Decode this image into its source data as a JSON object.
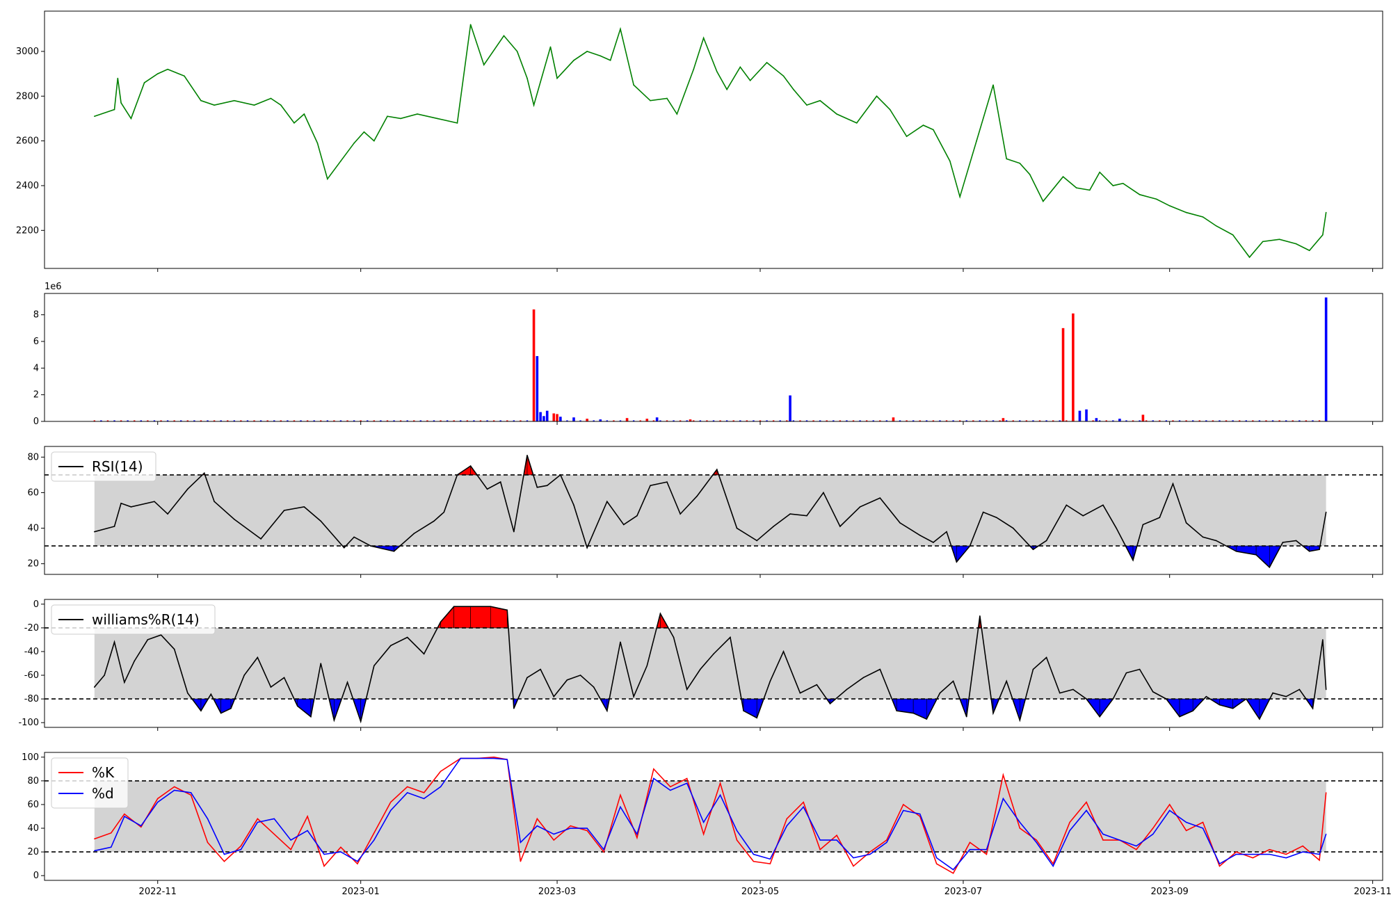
{
  "figure": {
    "x_ticks": [
      "2022-11",
      "2023-01",
      "2023-03",
      "2023-05",
      "2023-07",
      "2023-09",
      "2023-11"
    ],
    "colors": {
      "price": "#008000",
      "up": "#0000ff",
      "down": "#ff0000",
      "band": "#d3d3d3",
      "line": "#000000",
      "k": "#ff0000",
      "d": "#0000ff"
    }
  },
  "chart_data": [
    {
      "type": "line",
      "panel": "price",
      "x_range": [
        "2022-09-28",
        "2023-11-04"
      ],
      "ylim": [
        2030,
        3180
      ],
      "y_ticks": [
        "2200",
        "2400",
        "2600",
        "2800",
        "3000"
      ],
      "x": [
        "2022-10-13",
        "2022-10-19",
        "2022-10-20",
        "2022-10-21",
        "2022-10-24",
        "2022-10-28",
        "2022-11-01",
        "2022-11-04",
        "2022-11-09",
        "2022-11-14",
        "2022-11-18",
        "2022-11-24",
        "2022-11-30",
        "2022-12-05",
        "2022-12-08",
        "2022-12-12",
        "2022-12-15",
        "2022-12-19",
        "2022-12-22",
        "2022-12-26",
        "2022-12-30",
        "2023-01-02",
        "2023-01-05",
        "2023-01-09",
        "2023-01-13",
        "2023-01-18",
        "2023-01-24",
        "2023-01-30",
        "2023-02-03",
        "2023-02-07",
        "2023-02-13",
        "2023-02-17",
        "2023-02-20",
        "2023-02-22",
        "2023-02-27",
        "2023-03-01",
        "2023-03-06",
        "2023-03-10",
        "2023-03-14",
        "2023-03-17",
        "2023-03-20",
        "2023-03-24",
        "2023-03-29",
        "2023-04-03",
        "2023-04-06",
        "2023-04-11",
        "2023-04-14",
        "2023-04-18",
        "2023-04-21",
        "2023-04-25",
        "2023-04-28",
        "2023-05-03",
        "2023-05-08",
        "2023-05-11",
        "2023-05-15",
        "2023-05-19",
        "2023-05-24",
        "2023-05-30",
        "2023-06-05",
        "2023-06-09",
        "2023-06-14",
        "2023-06-19",
        "2023-06-22",
        "2023-06-27",
        "2023-06-30",
        "2023-07-05",
        "2023-07-10",
        "2023-07-14",
        "2023-07-18",
        "2023-07-21",
        "2023-07-25",
        "2023-07-31",
        "2023-08-04",
        "2023-08-08",
        "2023-08-11",
        "2023-08-15",
        "2023-08-18",
        "2023-08-23",
        "2023-08-28",
        "2023-09-01",
        "2023-09-06",
        "2023-09-11",
        "2023-09-15",
        "2023-09-20",
        "2023-09-25",
        "2023-09-29",
        "2023-10-04",
        "2023-10-09",
        "2023-10-13",
        "2023-10-17",
        "2023-10-18"
      ],
      "values": [
        2710,
        2740,
        2880,
        2770,
        2700,
        2860,
        2900,
        2920,
        2890,
        2780,
        2760,
        2780,
        2760,
        2790,
        2760,
        2680,
        2720,
        2590,
        2430,
        2510,
        2590,
        2640,
        2600,
        2710,
        2700,
        2720,
        2700,
        2680,
        3120,
        2940,
        3070,
        3000,
        2880,
        2760,
        3020,
        2880,
        2960,
        3000,
        2980,
        2960,
        3100,
        2850,
        2780,
        2790,
        2720,
        2920,
        3060,
        2910,
        2830,
        2930,
        2870,
        2950,
        2890,
        2830,
        2760,
        2780,
        2720,
        2680,
        2800,
        2740,
        2620,
        2670,
        2650,
        2510,
        2350,
        2600,
        2850,
        2520,
        2500,
        2450,
        2330,
        2440,
        2390,
        2380,
        2460,
        2400,
        2410,
        2360,
        2340,
        2310,
        2280,
        2260,
        2220,
        2180,
        2080,
        2150,
        2160,
        2140,
        2110,
        2180,
        2280
      ]
    },
    {
      "type": "bar",
      "panel": "volume",
      "multiplier_label": "1e6",
      "ylim": [
        0,
        9.6
      ],
      "y_ticks": [
        "0",
        "2",
        "4",
        "6",
        "8"
      ],
      "series": [
        {
          "color": "#ff0000",
          "bars": [
            [
              "2023-02-22",
              8.4
            ],
            [
              "2023-02-28",
              0.6
            ],
            [
              "2023-03-01",
              0.55
            ],
            [
              "2023-03-10",
              0.2
            ],
            [
              "2023-03-22",
              0.25
            ],
            [
              "2023-03-28",
              0.2
            ],
            [
              "2023-04-10",
              0.15
            ],
            [
              "2023-06-10",
              0.3
            ],
            [
              "2023-07-13",
              0.25
            ],
            [
              "2023-07-31",
              7.0
            ],
            [
              "2023-08-03",
              8.1
            ],
            [
              "2023-08-24",
              0.5
            ]
          ]
        },
        {
          "color": "#0000ff",
          "bars": [
            [
              "2023-02-23",
              4.9
            ],
            [
              "2023-02-24",
              0.7
            ],
            [
              "2023-02-25",
              0.4
            ],
            [
              "2023-02-26",
              0.8
            ],
            [
              "2023-03-02",
              0.35
            ],
            [
              "2023-03-06",
              0.3
            ],
            [
              "2023-03-14",
              0.15
            ],
            [
              "2023-03-31",
              0.3
            ],
            [
              "2023-05-10",
              1.95
            ],
            [
              "2023-08-05",
              0.8
            ],
            [
              "2023-08-07",
              0.9
            ],
            [
              "2023-08-10",
              0.25
            ],
            [
              "2023-08-17",
              0.2
            ],
            [
              "2023-10-18",
              9.3
            ]
          ]
        }
      ]
    },
    {
      "type": "line",
      "panel": "rsi",
      "ylim": [
        14,
        86
      ],
      "y_ticks": [
        "20",
        "40",
        "60",
        "80"
      ],
      "reference_lines": [
        30,
        70
      ],
      "legend": [
        "RSI(14)"
      ],
      "x": [
        "2022-10-13",
        "2022-10-19",
        "2022-10-21",
        "2022-10-24",
        "2022-10-31",
        "2022-11-04",
        "2022-11-10",
        "2022-11-15",
        "2022-11-18",
        "2022-11-24",
        "2022-12-02",
        "2022-12-09",
        "2022-12-15",
        "2022-12-20",
        "2022-12-27",
        "2022-12-30",
        "2023-01-04",
        "2023-01-11",
        "2023-01-17",
        "2023-01-23",
        "2023-01-26",
        "2023-01-30",
        "2023-02-03",
        "2023-02-08",
        "2023-02-12",
        "2023-02-16",
        "2023-02-20",
        "2023-02-23",
        "2023-02-26",
        "2023-03-02",
        "2023-03-06",
        "2023-03-10",
        "2023-03-16",
        "2023-03-21",
        "2023-03-25",
        "2023-03-29",
        "2023-04-03",
        "2023-04-07",
        "2023-04-12",
        "2023-04-18",
        "2023-04-24",
        "2023-04-30",
        "2023-05-05",
        "2023-05-10",
        "2023-05-15",
        "2023-05-20",
        "2023-05-25",
        "2023-05-31",
        "2023-06-06",
        "2023-06-12",
        "2023-06-18",
        "2023-06-22",
        "2023-06-26",
        "2023-06-29",
        "2023-07-03",
        "2023-07-07",
        "2023-07-11",
        "2023-07-16",
        "2023-07-22",
        "2023-07-26",
        "2023-08-01",
        "2023-08-06",
        "2023-08-12",
        "2023-08-16",
        "2023-08-21",
        "2023-08-24",
        "2023-08-29",
        "2023-09-02",
        "2023-09-06",
        "2023-09-11",
        "2023-09-15",
        "2023-09-21",
        "2023-09-27",
        "2023-10-01",
        "2023-10-05",
        "2023-10-09",
        "2023-10-13",
        "2023-10-16",
        "2023-10-18"
      ],
      "values": [
        38,
        41,
        54,
        52,
        55,
        48,
        62,
        71,
        55,
        45,
        34,
        50,
        52,
        44,
        29,
        35,
        30,
        27,
        37,
        44,
        49,
        70,
        75,
        62,
        66,
        38,
        81,
        63,
        64,
        70,
        53,
        29,
        55,
        42,
        47,
        64,
        66,
        48,
        58,
        73,
        40,
        33,
        41,
        48,
        47,
        60,
        41,
        52,
        57,
        43,
        36,
        32,
        38,
        21,
        30,
        49,
        46,
        40,
        28,
        33,
        53,
        47,
        53,
        40,
        22,
        42,
        46,
        65,
        43,
        35,
        33,
        27,
        25,
        18,
        32,
        33,
        27,
        28,
        49
      ]
    },
    {
      "type": "line",
      "panel": "williams_r",
      "ylim": [
        -104,
        4
      ],
      "y_ticks": [
        "0",
        "-20",
        "-40",
        "-60",
        "-80",
        "-100"
      ],
      "reference_lines": [
        -20,
        -80
      ],
      "legend": [
        "williams%R(14)"
      ],
      "x": [
        "2022-10-13",
        "2022-10-16",
        "2022-10-19",
        "2022-10-22",
        "2022-10-25",
        "2022-10-29",
        "2022-11-02",
        "2022-11-06",
        "2022-11-10",
        "2022-11-14",
        "2022-11-17",
        "2022-11-20",
        "2022-11-23",
        "2022-11-27",
        "2022-12-01",
        "2022-12-05",
        "2022-12-09",
        "2022-12-13",
        "2022-12-17",
        "2022-12-20",
        "2022-12-24",
        "2022-12-28",
        "2023-01-01",
        "2023-01-05",
        "2023-01-10",
        "2023-01-15",
        "2023-01-20",
        "2023-01-25",
        "2023-01-29",
        "2023-02-03",
        "2023-02-09",
        "2023-02-14",
        "2023-02-16",
        "2023-02-20",
        "2023-02-24",
        "2023-02-28",
        "2023-03-04",
        "2023-03-08",
        "2023-03-12",
        "2023-03-16",
        "2023-03-20",
        "2023-03-24",
        "2023-03-28",
        "2023-04-01",
        "2023-04-05",
        "2023-04-09",
        "2023-04-13",
        "2023-04-17",
        "2023-04-22",
        "2023-04-26",
        "2023-04-30",
        "2023-05-04",
        "2023-05-08",
        "2023-05-13",
        "2023-05-18",
        "2023-05-22",
        "2023-05-27",
        "2023-06-01",
        "2023-06-06",
        "2023-06-11",
        "2023-06-16",
        "2023-06-20",
        "2023-06-24",
        "2023-06-28",
        "2023-07-02",
        "2023-07-06",
        "2023-07-10",
        "2023-07-14",
        "2023-07-18",
        "2023-07-22",
        "2023-07-26",
        "2023-07-30",
        "2023-08-03",
        "2023-08-07",
        "2023-08-11",
        "2023-08-15",
        "2023-08-19",
        "2023-08-23",
        "2023-08-27",
        "2023-08-31",
        "2023-09-04",
        "2023-09-08",
        "2023-09-12",
        "2023-09-16",
        "2023-09-20",
        "2023-09-24",
        "2023-09-28",
        "2023-10-02",
        "2023-10-06",
        "2023-10-10",
        "2023-10-14",
        "2023-10-17",
        "2023-10-18"
      ],
      "values": [
        -70,
        -60,
        -32,
        -66,
        -48,
        -30,
        -26,
        -38,
        -75,
        -90,
        -76,
        -92,
        -88,
        -60,
        -45,
        -70,
        -62,
        -86,
        -95,
        -50,
        -98,
        -66,
        -99,
        -52,
        -35,
        -28,
        -42,
        -15,
        -2,
        -2,
        -2,
        -5,
        -88,
        -62,
        -55,
        -78,
        -64,
        -60,
        -70,
        -90,
        -32,
        -78,
        -52,
        -8,
        -28,
        -72,
        -55,
        -42,
        -28,
        -90,
        -96,
        -65,
        -40,
        -75,
        -68,
        -84,
        -72,
        -62,
        -55,
        -90,
        -92,
        -97,
        -75,
        -65,
        -95,
        -10,
        -92,
        -65,
        -98,
        -55,
        -45,
        -75,
        -72,
        -80,
        -95,
        -80,
        -58,
        -55,
        -74,
        -80,
        -95,
        -90,
        -78,
        -85,
        -88,
        -80,
        -97,
        -75,
        -78,
        -72,
        -88,
        -30,
        -72
      ]
    },
    {
      "type": "line",
      "panel": "stochastic",
      "ylim": [
        -4,
        104
      ],
      "y_ticks": [
        "0",
        "20",
        "40",
        "60",
        "80",
        "100"
      ],
      "reference_lines": [
        20,
        80
      ],
      "legend": [
        "%K",
        "%d"
      ],
      "x": [
        "2022-10-13",
        "2022-10-18",
        "2022-10-22",
        "2022-10-27",
        "2022-11-01",
        "2022-11-06",
        "2022-11-11",
        "2022-11-16",
        "2022-11-21",
        "2022-11-26",
        "2022-12-01",
        "2022-12-06",
        "2022-12-11",
        "2022-12-16",
        "2022-12-21",
        "2022-12-26",
        "2022-12-31",
        "2023-01-05",
        "2023-01-10",
        "2023-01-15",
        "2023-01-20",
        "2023-01-25",
        "2023-01-31",
        "2023-02-05",
        "2023-02-10",
        "2023-02-14",
        "2023-02-18",
        "2023-02-23",
        "2023-02-28",
        "2023-03-05",
        "2023-03-10",
        "2023-03-15",
        "2023-03-20",
        "2023-03-25",
        "2023-03-30",
        "2023-04-04",
        "2023-04-09",
        "2023-04-14",
        "2023-04-19",
        "2023-04-24",
        "2023-04-29",
        "2023-05-04",
        "2023-05-09",
        "2023-05-14",
        "2023-05-19",
        "2023-05-24",
        "2023-05-29",
        "2023-06-03",
        "2023-06-08",
        "2023-06-13",
        "2023-06-18",
        "2023-06-23",
        "2023-06-28",
        "2023-07-03",
        "2023-07-08",
        "2023-07-13",
        "2023-07-18",
        "2023-07-23",
        "2023-07-28",
        "2023-08-02",
        "2023-08-07",
        "2023-08-12",
        "2023-08-17",
        "2023-08-22",
        "2023-08-27",
        "2023-09-01",
        "2023-09-06",
        "2023-09-11",
        "2023-09-16",
        "2023-09-21",
        "2023-09-26",
        "2023-10-01",
        "2023-10-06",
        "2023-10-11",
        "2023-10-16",
        "2023-10-18"
      ],
      "series": [
        {
          "name": "%K",
          "color": "#ff0000",
          "values": [
            31,
            36,
            52,
            41,
            65,
            75,
            68,
            28,
            12,
            25,
            48,
            35,
            22,
            50,
            8,
            24,
            10,
            36,
            62,
            75,
            70,
            88,
            99,
            99,
            100,
            98,
            12,
            48,
            30,
            42,
            38,
            20,
            68,
            32,
            90,
            75,
            82,
            35,
            78,
            30,
            12,
            10,
            48,
            62,
            22,
            34,
            8,
            20,
            30,
            60,
            50,
            10,
            2,
            28,
            18,
            85,
            40,
            30,
            10,
            45,
            62,
            30,
            30,
            22,
            40,
            60,
            38,
            45,
            8,
            20,
            15,
            22,
            18,
            25,
            13,
            70
          ]
        },
        {
          "name": "%d",
          "color": "#0000ff",
          "values": [
            21,
            24,
            50,
            42,
            62,
            72,
            70,
            48,
            18,
            22,
            45,
            48,
            30,
            38,
            18,
            20,
            12,
            30,
            55,
            70,
            65,
            75,
            99,
            99,
            99,
            98,
            28,
            42,
            35,
            40,
            40,
            22,
            58,
            35,
            82,
            72,
            78,
            45,
            68,
            38,
            18,
            14,
            42,
            58,
            30,
            30,
            15,
            18,
            28,
            55,
            52,
            15,
            5,
            22,
            22,
            65,
            45,
            28,
            8,
            38,
            55,
            35,
            30,
            25,
            35,
            55,
            45,
            40,
            10,
            18,
            18,
            18,
            15,
            20,
            18,
            35
          ]
        }
      ]
    }
  ]
}
